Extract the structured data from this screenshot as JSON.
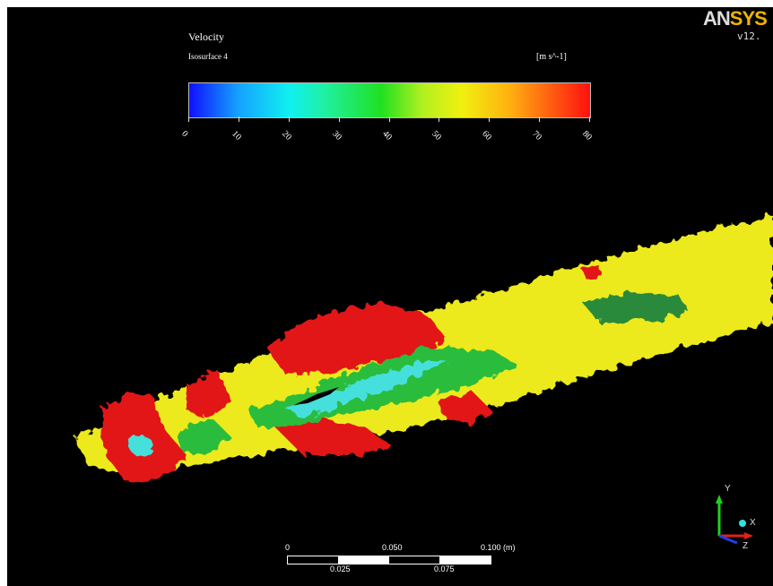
{
  "legend": {
    "title": "Velocity",
    "subtitle": "Isosurface 4",
    "unit": "[m s^-1]",
    "ticks": [
      "0",
      "10",
      "20",
      "30",
      "40",
      "50",
      "60",
      "70",
      "80"
    ]
  },
  "branding": {
    "logo_an": "AN",
    "logo_sys": "SYS",
    "version": "v12."
  },
  "scale": {
    "top_labels": [
      "0",
      "0.050",
      "0.100 (m)"
    ],
    "bottom_labels": [
      "0.025",
      "0.075"
    ]
  },
  "axes": {
    "y": "Y",
    "x": "X",
    "z": "Z"
  },
  "colors": {
    "background": "#000000",
    "red": "#e81818",
    "yellow": "#f0ee20",
    "green": "#30c030",
    "cyan": "#40e0e0"
  }
}
